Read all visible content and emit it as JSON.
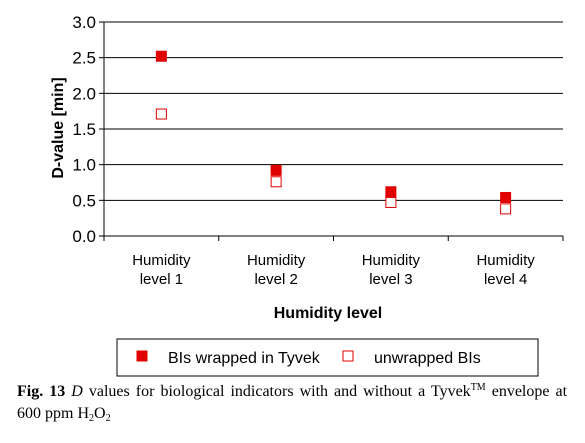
{
  "chart_data": {
    "type": "scatter",
    "ylabel": "D-value [min]",
    "xlabel": "Humidity level",
    "ylim": [
      0,
      3
    ],
    "yticks": [
      "0.0",
      "0.5",
      "1.0",
      "1.5",
      "2.0",
      "2.5",
      "3.0"
    ],
    "grid": true,
    "legend_position": "bottom",
    "categories": [
      [
        "Humidity",
        "level 1"
      ],
      [
        "Humidity",
        "level 2"
      ],
      [
        "Humidity",
        "level 3"
      ],
      [
        "Humidity",
        "level 4"
      ]
    ],
    "series": [
      {
        "name": "BIs wrapped in Tyvek",
        "marker": "filled-square",
        "color": "#e00000",
        "values": [
          2.52,
          0.92,
          0.62,
          0.54
        ]
      },
      {
        "name": "unwrapped BIs",
        "marker": "open-square",
        "color": "#e00000",
        "values": [
          1.71,
          0.76,
          0.47,
          0.38
        ]
      }
    ]
  },
  "caption": {
    "fig_label": "Fig. 13",
    "d_symbol": "D",
    "text_1": "values for biological indicators with and without a Tyvek",
    "tm": "TM",
    "text_2": "envelope at 600 ppm H",
    "sub_1": "2",
    "text_3": "O",
    "sub_2": "2"
  }
}
